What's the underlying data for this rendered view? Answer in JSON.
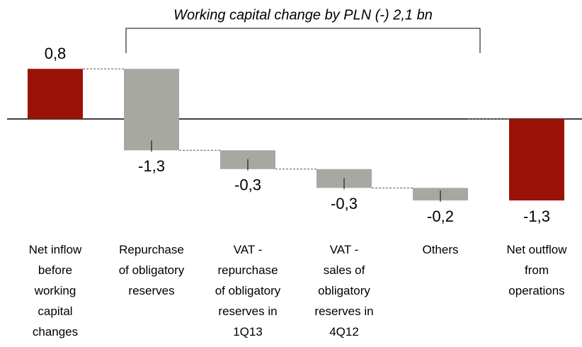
{
  "chart_data": {
    "type": "waterfall",
    "annotation": "Working capital change by PLN (-) 2,1 bn",
    "categories": [
      "Net inflow\nbefore\nworking\ncapital\nchanges",
      "Repurchase\nof obligatory\nreserves",
      "VAT -\nrepurchase\nof obligatory\nreserves in\n1Q13",
      "VAT -\nsales of\nobligatory\nreserves in\n4Q12",
      "Others",
      "Net outflow\nfrom\noperations"
    ],
    "values": [
      0.8,
      -1.3,
      -0.3,
      -0.3,
      -0.2,
      -1.3
    ],
    "value_labels": [
      "0,8",
      "-1,3",
      "-0,3",
      "-0,3",
      "-0,2",
      "-1,3"
    ],
    "colors": [
      "#9b1306",
      "#a8a8a2",
      "#a8a8a2",
      "#a8a8a2",
      "#a8a8a2",
      "#9b1306"
    ]
  }
}
